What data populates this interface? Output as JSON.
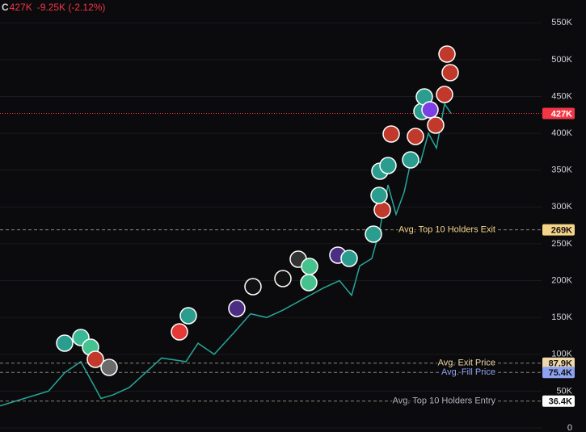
{
  "header": {
    "symbol": "C",
    "price": "427K",
    "change": "-9.25K (-2.12%)"
  },
  "chart_data": {
    "type": "line",
    "x": [
      0,
      30,
      60,
      80,
      100,
      115,
      125,
      140,
      160,
      180,
      200,
      230,
      245,
      265,
      290,
      310,
      330,
      350,
      375,
      400,
      420,
      435,
      445,
      460,
      470,
      480,
      490,
      500,
      510,
      520,
      530,
      540,
      550,
      558
    ],
    "series": [
      {
        "name": "Price",
        "color": "#26a69a",
        "values": [
          30000,
          40000,
          50000,
          75000,
          90000,
          60000,
          40000,
          45000,
          55000,
          75000,
          95000,
          90000,
          115000,
          100000,
          130000,
          155000,
          150000,
          160000,
          175000,
          190000,
          200000,
          180000,
          220000,
          230000,
          270000,
          330000,
          290000,
          320000,
          370000,
          360000,
          400000,
          380000,
          440000,
          427000
        ]
      }
    ],
    "xlim": [
      0,
      670
    ],
    "ylim": [
      -5500,
      581000
    ],
    "yticks": [
      {
        "value": 0,
        "label": "0"
      },
      {
        "value": 50000,
        "label": "50K"
      },
      {
        "value": 100000,
        "label": "100K"
      },
      {
        "value": 150000,
        "label": "150K"
      },
      {
        "value": 200000,
        "label": "200K"
      },
      {
        "value": 250000,
        "label": "250K"
      },
      {
        "value": 300000,
        "label": "300K"
      },
      {
        "value": 350000,
        "label": "350K"
      },
      {
        "value": 400000,
        "label": "400K"
      },
      {
        "value": 450000,
        "label": "450K"
      },
      {
        "value": 500000,
        "label": "500K"
      },
      {
        "value": 550000,
        "label": "550K"
      }
    ],
    "last_price": {
      "value": 427000,
      "label": "427K",
      "color": "#f23645"
    },
    "ref_lines": [
      {
        "name": "Avg. Top 10 Holders Exit",
        "value": 269000,
        "label": "269K",
        "color": "#f5d48a"
      },
      {
        "name": "Avg. Exit Price",
        "value": 87900,
        "label": "87.9K",
        "color": "#f0d9a8"
      },
      {
        "name": "Avg. Fill Price",
        "value": 75400,
        "label": "75.4K",
        "color": "#8ea2f2"
      },
      {
        "name": "Avg. Top 10 Holders Entry",
        "value": 36400,
        "label": "36.4K",
        "color": "#ffffff"
      }
    ]
  }
}
